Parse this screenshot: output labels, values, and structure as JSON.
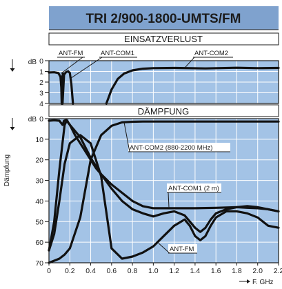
{
  "header": {
    "title": "TRI 2/900-1800-UMTS/FM",
    "title_bg": "#7fa2ce"
  },
  "colors": {
    "plot_bg": "#a3c3e6",
    "grid": "#ffffff",
    "curve": "#111111",
    "frame": "#1a1a1a"
  },
  "chart_data": [
    {
      "type": "line",
      "title": "EINSATZVERLUST",
      "ylabel_unit": "dB",
      "x_ticks": [],
      "y_ticks": [
        "0",
        "1",
        "2",
        "3",
        "4"
      ],
      "xlim": [
        0,
        2.2
      ],
      "ylim": [
        0,
        4
      ],
      "y_inverted": true,
      "grid": true,
      "series": [
        {
          "name": "ANT-FM",
          "x": [
            0,
            0.05,
            0.09,
            0.11,
            0.118,
            0.122,
            0.126,
            0.13,
            0.135
          ],
          "y": [
            1.1,
            1.08,
            1.15,
            1.5,
            2.5,
            4,
            2.5,
            1.4,
            1.2
          ]
        },
        {
          "name": "ANT-COM1",
          "x": [
            0.13,
            0.145,
            0.165,
            0.185,
            0.2,
            0.215,
            0.23
          ],
          "y": [
            4,
            1.3,
            1.05,
            1.0,
            1.15,
            2.2,
            4
          ]
        },
        {
          "name": "ANT-COM2",
          "x": [
            0.55,
            0.6,
            0.66,
            0.72,
            0.8,
            0.9,
            1.0,
            1.2,
            1.5,
            1.8,
            2.0,
            2.2
          ],
          "y": [
            4,
            2.7,
            1.7,
            1.2,
            0.9,
            0.75,
            0.7,
            0.68,
            0.72,
            0.66,
            0.7,
            0.68
          ]
        }
      ],
      "annotations": [
        "ANT-FM",
        "ANT-COM1",
        "ANT-COM2"
      ]
    },
    {
      "type": "line",
      "title": "DÄMPFUNG",
      "ylabel": "Dämpfung",
      "ylabel_unit": "dB",
      "xlabel": "F. GHz",
      "x_ticks": [
        "0",
        "0.2",
        "0.4",
        "0.6",
        "0.8",
        "1.0",
        "1.2",
        "1.4",
        "1.6",
        "1.8",
        "2.0",
        "2.2"
      ],
      "y_ticks": [
        "0",
        "10",
        "20",
        "30",
        "40",
        "50",
        "60",
        "70"
      ],
      "xlim": [
        0,
        2.2
      ],
      "ylim": [
        0,
        70
      ],
      "y_inverted": true,
      "grid": true,
      "series": [
        {
          "name": "ANT-FM",
          "x": [
            0,
            0.05,
            0.1,
            0.13,
            0.145,
            0.17,
            0.2,
            0.3,
            0.4,
            0.5,
            0.6,
            0.7,
            0.8,
            0.9,
            1.0,
            1.1,
            1.2,
            1.3,
            1.4,
            1.45,
            1.5,
            1.55,
            1.6,
            1.7,
            1.8,
            1.9,
            2.0,
            2.1,
            2.2
          ],
          "y": [
            1,
            0.8,
            1,
            3,
            1,
            0.6,
            3,
            9,
            19,
            27,
            34,
            40,
            44,
            46,
            47.5,
            46,
            45,
            47,
            53,
            55,
            53,
            49,
            46,
            44,
            43,
            42.5,
            43,
            44,
            45
          ]
        },
        {
          "name": "ANT-COM1 (2 m)",
          "x": [
            0,
            0.05,
            0.1,
            0.15,
            0.17,
            0.2,
            0.25,
            0.3,
            0.35,
            0.4,
            0.45,
            0.5,
            0.6,
            0.7,
            0.8,
            0.9,
            1.0,
            1.2,
            1.4,
            1.6,
            1.8,
            1.9,
            2.0,
            2.1,
            2.2
          ],
          "y": [
            64,
            50,
            25,
            3,
            1,
            3,
            8,
            12,
            16,
            20,
            24,
            27,
            32,
            36,
            40,
            42.5,
            43.5,
            43.5,
            43.5,
            43.3,
            43,
            43.3,
            43.5,
            44,
            45
          ]
        },
        {
          "name": "ANT-COM2 (880-2200 MHz)",
          "x": [
            0,
            0.05,
            0.1,
            0.15,
            0.2,
            0.3,
            0.4,
            0.5,
            0.6,
            0.7,
            0.8,
            0.9,
            1.0,
            1.2,
            1.4,
            1.6,
            1.8,
            2.0,
            2.2
          ],
          "y": [
            70,
            69,
            68,
            66,
            63,
            48,
            20,
            8,
            3.5,
            1.8,
            1.5,
            1.4,
            1.4,
            1.4,
            1.4,
            1.4,
            1.4,
            1.4,
            1.4
          ]
        },
        {
          "name": "ANT-FM (2)",
          "x": [
            0,
            0.05,
            0.1,
            0.15,
            0.2,
            0.3,
            0.4,
            0.5,
            0.6,
            0.7,
            0.8,
            0.9,
            1.0,
            1.1,
            1.2,
            1.3,
            1.35,
            1.4,
            1.45,
            1.5,
            1.55,
            1.6,
            1.7,
            1.8,
            1.9,
            2.0,
            2.1,
            2.2
          ],
          "y": [
            64,
            56,
            40,
            22,
            12,
            8,
            12,
            28,
            63,
            68,
            67,
            65,
            62,
            57,
            52,
            49,
            52,
            57,
            59,
            57,
            52,
            48,
            45,
            45,
            46,
            48,
            52,
            53
          ]
        }
      ],
      "annotations": [
        "ANT-COM2 (880-2200 MHz)",
        "ANT-COM1 (2 m)",
        "ANT-FM"
      ]
    }
  ]
}
